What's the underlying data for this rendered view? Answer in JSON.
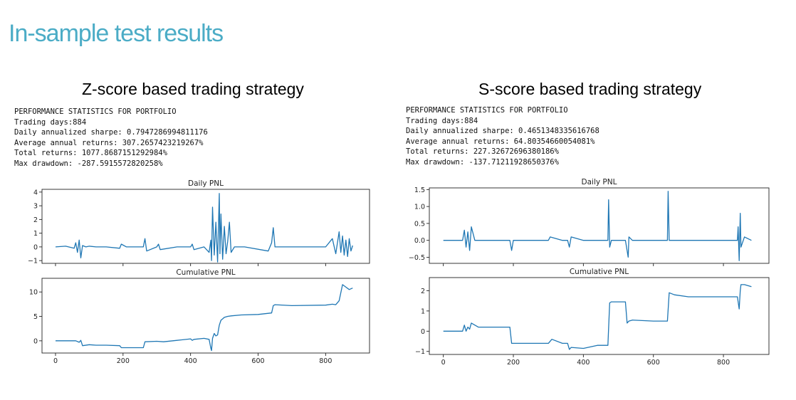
{
  "slide_title": "In-sample test results",
  "panels": [
    {
      "heading": "Z-score based trading strategy",
      "stats": [
        "PERFORMANCE STATISTICS FOR PORTFOLIO",
        "Trading days:884",
        "Daily annualized sharpe: 0.7947286994811176",
        "Average annual returns: 307.2657423219267%",
        "Total returns: 1077.8687151292984%",
        "Max drawdown: -287.5915572820258%"
      ]
    },
    {
      "heading": "S-score based trading strategy",
      "stats": [
        "PERFORMANCE STATISTICS FOR PORTFOLIO",
        "Trading days:884",
        "Daily annualized sharpe: 0.4651348335616768",
        "Average annual returns: 64.80354660054081%",
        "Total returns: 227.32672696380186%",
        "Max drawdown: -137.71211928650376%"
      ]
    }
  ],
  "line_color": "#1f77b4",
  "chart_data": [
    {
      "type": "line",
      "title": "Daily PNL",
      "xlim": [
        -40,
        930
      ],
      "ylim": [
        -1.2,
        4.2
      ],
      "yticks": [
        -1,
        0,
        1,
        2,
        3,
        4
      ],
      "x": [
        0,
        30,
        55,
        60,
        65,
        70,
        75,
        80,
        90,
        100,
        120,
        150,
        190,
        195,
        210,
        260,
        265,
        270,
        300,
        305,
        310,
        360,
        400,
        405,
        410,
        440,
        455,
        460,
        462,
        465,
        470,
        475,
        480,
        485,
        487,
        490,
        495,
        500,
        505,
        510,
        515,
        520,
        530,
        560,
        630,
        640,
        645,
        650,
        700,
        800,
        820,
        830,
        840,
        845,
        850,
        855,
        860,
        865,
        870,
        875,
        880
      ],
      "y": [
        0,
        0.05,
        -0.1,
        0.3,
        -0.4,
        0.5,
        -0.8,
        0.1,
        0,
        0.05,
        0,
        0,
        -0.1,
        0.2,
        0,
        0,
        0.6,
        -0.3,
        0,
        0.2,
        -0.2,
        0,
        0,
        0.2,
        -0.2,
        0,
        -0.4,
        0.5,
        -1.0,
        2.9,
        -0.6,
        1.8,
        -1.1,
        3.9,
        -0.5,
        2.4,
        -0.9,
        1.5,
        -0.5,
        0.4,
        1.8,
        -0.4,
        0,
        0,
        -0.3,
        0.3,
        1.4,
        0,
        0,
        0,
        0.6,
        -0.5,
        1.1,
        -0.4,
        0.8,
        -0.6,
        0.5,
        -0.7,
        0.6,
        -0.3,
        0.1
      ],
      "xticks": [
        0,
        200,
        400,
        600,
        800
      ],
      "xticklabels": [
        "",
        "",
        "",
        "",
        ""
      ]
    },
    {
      "type": "line",
      "title": "Cumulative PNL",
      "xlim": [
        -40,
        930
      ],
      "ylim": [
        -2.5,
        12.8
      ],
      "yticks": [
        0,
        5,
        10
      ],
      "x": [
        0,
        60,
        70,
        75,
        80,
        100,
        120,
        150,
        190,
        195,
        260,
        265,
        300,
        320,
        360,
        400,
        405,
        410,
        440,
        455,
        460,
        462,
        465,
        470,
        475,
        480,
        485,
        490,
        495,
        500,
        510,
        520,
        550,
        600,
        640,
        645,
        650,
        700,
        800,
        820,
        830,
        840,
        850,
        860,
        870,
        880
      ],
      "y": [
        0,
        0,
        -0.3,
        0.1,
        -1.0,
        -0.8,
        -0.9,
        -0.9,
        -1.0,
        -1.4,
        -1.4,
        -0.2,
        -0.1,
        -0.2,
        0.1,
        0.4,
        0.1,
        0.3,
        0.5,
        0.3,
        -1.5,
        -2.0,
        0.5,
        1.5,
        1.0,
        1.2,
        3.2,
        4.2,
        4.5,
        4.8,
        5.0,
        5.1,
        5.3,
        5.4,
        5.7,
        7.2,
        7.4,
        7.2,
        7.3,
        7.5,
        7.4,
        8.2,
        11.5,
        11.0,
        10.5,
        10.8
      ],
      "xticks": [
        0,
        200,
        400,
        600,
        800
      ],
      "xticklabels": [
        "0",
        "200",
        "400",
        "600",
        "800"
      ]
    },
    {
      "type": "line",
      "title": "Daily PNL",
      "xlim": [
        -40,
        930
      ],
      "ylim": [
        -0.68,
        1.55
      ],
      "yticks": [
        -0.5,
        0,
        0.5,
        1,
        1.5
      ],
      "yticklabels": [
        "−0.5",
        "0.0",
        "0.5",
        "1.0",
        "1.5"
      ],
      "x": [
        0,
        55,
        60,
        65,
        70,
        75,
        80,
        90,
        120,
        190,
        195,
        200,
        300,
        305,
        340,
        355,
        360,
        365,
        400,
        470,
        472,
        475,
        480,
        520,
        528,
        530,
        540,
        600,
        640,
        642,
        645,
        700,
        820,
        840,
        842,
        845,
        848,
        850,
        860,
        880
      ],
      "y": [
        0,
        0,
        0.3,
        -0.2,
        0.25,
        -0.3,
        0.4,
        0,
        0,
        0,
        -0.3,
        0,
        0,
        0.1,
        0,
        0,
        -0.2,
        0.1,
        0,
        0,
        1.2,
        -0.2,
        0,
        0,
        -0.5,
        0.1,
        0,
        0,
        0,
        1.45,
        0,
        0,
        0,
        0,
        0.4,
        -0.6,
        0.8,
        -0.2,
        0.1,
        0
      ],
      "xticks": [
        0,
        200,
        400,
        600,
        800
      ],
      "xticklabels": [
        "",
        "",
        "",
        "",
        ""
      ]
    },
    {
      "type": "line",
      "title": "Cumulative PNL",
      "xlim": [
        -40,
        930
      ],
      "ylim": [
        -1.15,
        2.65
      ],
      "yticks": [
        -1,
        0,
        1,
        2
      ],
      "x": [
        0,
        55,
        60,
        65,
        70,
        75,
        80,
        100,
        190,
        195,
        200,
        300,
        310,
        340,
        355,
        360,
        365,
        400,
        440,
        470,
        475,
        480,
        520,
        525,
        530,
        540,
        600,
        640,
        645,
        660,
        700,
        820,
        840,
        845,
        848,
        850,
        860,
        880
      ],
      "y": [
        0,
        0,
        0.3,
        0,
        0.2,
        0.1,
        0.4,
        0.2,
        0.2,
        -0.6,
        -0.6,
        -0.6,
        -0.4,
        -0.6,
        -0.6,
        -0.9,
        -0.8,
        -0.85,
        -0.7,
        -0.7,
        1.4,
        1.45,
        1.45,
        0.4,
        0.5,
        0.55,
        0.5,
        0.5,
        1.9,
        1.8,
        1.7,
        1.7,
        1.7,
        1.1,
        2.0,
        2.3,
        2.3,
        2.2
      ],
      "xticks": [
        0,
        200,
        400,
        600,
        800
      ],
      "xticklabels": [
        "0",
        "200",
        "400",
        "600",
        "800"
      ]
    }
  ]
}
